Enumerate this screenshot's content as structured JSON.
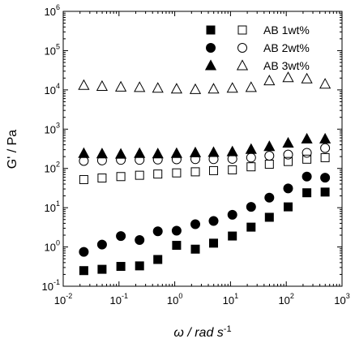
{
  "chart_data": {
    "type": "scatter",
    "xlabel": "ω / rad s",
    "xlabel_sup": "-1",
    "ylabel": "G' / Pa",
    "xscale": "log",
    "yscale": "log",
    "xlim": [
      0.01,
      1000
    ],
    "ylim": [
      0.1,
      1000000
    ],
    "grid": false,
    "legend_placement": "top-right",
    "x_tick_labels": [
      {
        "base": "10",
        "exp": "-2"
      },
      {
        "base": "10",
        "exp": "-1"
      },
      {
        "base": "10",
        "exp": "0"
      },
      {
        "base": "10",
        "exp": "1"
      },
      {
        "base": "10",
        "exp": "2"
      },
      {
        "base": "10",
        "exp": "3"
      }
    ],
    "y_tick_labels": [
      {
        "base": "10",
        "exp": "-1"
      },
      {
        "base": "10",
        "exp": "0"
      },
      {
        "base": "10",
        "exp": "1"
      },
      {
        "base": "10",
        "exp": "2"
      },
      {
        "base": "10",
        "exp": "3"
      },
      {
        "base": "10",
        "exp": "4"
      },
      {
        "base": "10",
        "exp": "5"
      },
      {
        "base": "10",
        "exp": "6"
      }
    ],
    "x": [
      0.0234,
      0.0497,
      0.108,
      0.234,
      0.497,
      1.08,
      2.34,
      4.97,
      10.8,
      23.4,
      49.7,
      108,
      234,
      497
    ],
    "series": [
      {
        "name": "AB 1wt%",
        "kind": "G'",
        "group": 1,
        "marker": "square",
        "filled": true,
        "values": [
          0.25,
          0.27,
          0.32,
          0.33,
          0.48,
          1.1,
          0.88,
          1.25,
          1.9,
          3.2,
          5.7,
          10.5,
          24,
          25
        ]
      },
      {
        "kind": "G''",
        "group": 1,
        "marker": "square",
        "filled": false,
        "values": [
          52,
          57,
          62,
          67,
          72,
          77,
          82,
          88,
          92,
          110,
          128,
          150,
          172,
          188
        ]
      },
      {
        "name": "AB 2wt%",
        "kind": "G'",
        "group": 2,
        "marker": "circle",
        "filled": true,
        "values": [
          0.75,
          1.15,
          1.9,
          1.5,
          2.5,
          2.6,
          3.8,
          4.6,
          6.6,
          10.5,
          18,
          31,
          62,
          58
        ]
      },
      {
        "kind": "G''",
        "group": 2,
        "marker": "circle",
        "filled": false,
        "values": [
          155,
          160,
          165,
          165,
          168,
          170,
          172,
          172,
          175,
          188,
          210,
          225,
          250,
          330
        ]
      },
      {
        "name": "AB 3wt%",
        "kind": "G'",
        "group": 3,
        "marker": "triangle",
        "filled": true,
        "values": [
          240,
          235,
          230,
          240,
          235,
          240,
          250,
          255,
          265,
          305,
          360,
          440,
          560,
          560
        ]
      },
      {
        "kind": "G''",
        "group": 3,
        "marker": "triangle",
        "filled": false,
        "values": [
          13000,
          12300,
          11800,
          11500,
          11000,
          10500,
          10200,
          10500,
          11000,
          11500,
          17000,
          20500,
          19000,
          14000
        ]
      }
    ]
  }
}
